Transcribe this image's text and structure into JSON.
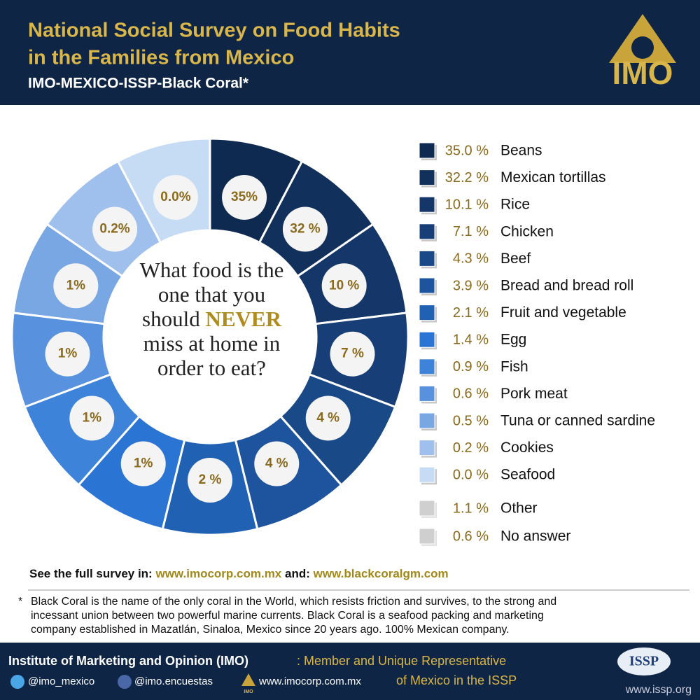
{
  "header": {
    "title_lines": [
      "National Social Survey on Food Habits",
      "in the Families from Mexico"
    ],
    "subtitle": "IMO-MEXICO-ISSP-Black Coral*",
    "logo": "IMO"
  },
  "chart_data": {
    "type": "donut",
    "question": {
      "before": "What food is the one that you should",
      "emphasis": "NEVER",
      "after": "miss at home in order to eat?"
    },
    "categories": [
      "Beans",
      "Mexican tortillas",
      "Rice",
      "Chicken",
      "Beef",
      "Bread and bread roll",
      "Fruit and vegetable",
      "Egg",
      "Fish",
      "Pork meat",
      "Tuna or canned sardine",
      "Cookies",
      "Seafood"
    ],
    "values": [
      35.0,
      32.2,
      10.1,
      7.1,
      4.3,
      3.9,
      2.1,
      1.4,
      0.9,
      0.6,
      0.5,
      0.2,
      0.0
    ],
    "value_labels": [
      "35.0 %",
      "32.2 %",
      "10.1 %",
      "7.1 %",
      "4.3 %",
      "3.9 %",
      "2.1 %",
      "1.4 %",
      "0.9 %",
      "0.6 %",
      "0.5 %",
      "0.2 %",
      "0.0 %"
    ],
    "ring_labels": [
      "35%",
      "32 %",
      "10 %",
      "7 %",
      "4 %",
      "4 %",
      "2 %",
      "1%",
      "1%",
      "1%",
      "1%",
      "0.2%",
      "0.0%"
    ],
    "colors": [
      "#0f2a50",
      "#12305c",
      "#143668",
      "#173e77",
      "#1a4988",
      "#1d549d",
      "#2161b4",
      "#2a74d3",
      "#3d83d9",
      "#5892de",
      "#78a7e4",
      "#9fc0ec",
      "#c6dcf4"
    ],
    "others": [
      {
        "name": "Other",
        "value": 1.1,
        "value_label": "1.1 %"
      },
      {
        "name": "No answer",
        "value": 0.6,
        "value_label": "0.6 %"
      }
    ],
    "others_color": "#cfcfcf"
  },
  "survey": {
    "prefix": "See the full survey in:",
    "link1": "www.imocorp.com.mx",
    "and": "and:",
    "link2": "www.blackcoralgm.com"
  },
  "footnote": {
    "star": "*",
    "lines": [
      "Black Coral is the name of the only coral in the World, which resists friction and survives, to the strong and",
      "incessant union between two powerful marine currents. Black Coral is a seafood packing and marketing",
      "company established in Mazatlán, Sinaloa, Mexico since 20 years ago. 100% Mexican company."
    ]
  },
  "footer": {
    "institute": "Institute of Marketing and Opinion (IMO)",
    "member_1": ": Member and Unique Representative",
    "member_2": "of Mexico in the ISSP",
    "twitter": "@imo_mexico",
    "facebook": "@imo.encuestas",
    "web": "www.imocorp.com.mx",
    "issp_logo": "ISSP",
    "issp_web": "www.issp.org",
    "imo_small": "IMO"
  }
}
